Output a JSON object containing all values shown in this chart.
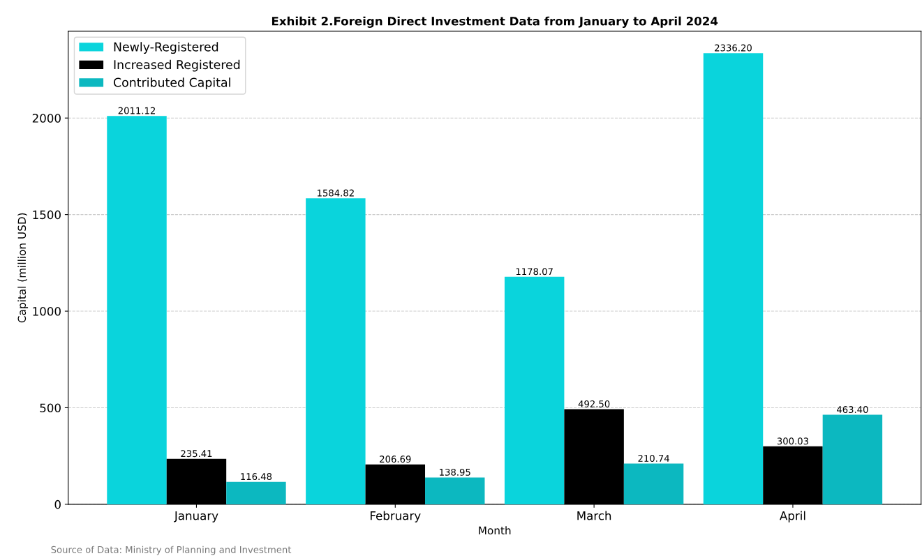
{
  "chart_data": {
    "type": "bar",
    "title": "Exhibit 2.Foreign Direct Investment Data from January to April 2024",
    "xlabel": "Month",
    "ylabel": "Capital (million USD)",
    "categories": [
      "January",
      "February",
      "March",
      "April"
    ],
    "series": [
      {
        "name": "Newly-Registered",
        "color": "#0ad4dc",
        "values": [
          2011.12,
          1584.82,
          1178.07,
          2336.2
        ],
        "value_labels": [
          "2011.12",
          "1584.82",
          "1178.07",
          "2336.20"
        ]
      },
      {
        "name": "Increased Registered",
        "color": "#000000",
        "values": [
          235.41,
          206.69,
          492.5,
          300.03
        ],
        "value_labels": [
          "235.41",
          "206.69",
          "492.50",
          "300.03"
        ]
      },
      {
        "name": "Contributed Capital",
        "color": "#0cb8c0",
        "values": [
          116.48,
          138.95,
          210.74,
          463.4
        ],
        "value_labels": [
          "116.48",
          "138.95",
          "210.74",
          "463.40"
        ]
      }
    ],
    "ylim": [
      0,
      2450
    ],
    "yticks": [
      0,
      500,
      1000,
      1500,
      2000
    ],
    "grid": "y",
    "legend": "top left",
    "annotations": [
      "Source of Data: Ministry of Planning and Investment"
    ]
  }
}
